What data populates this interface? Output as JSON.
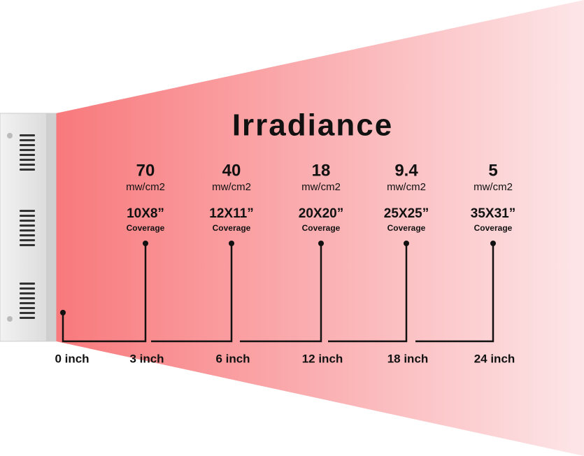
{
  "title": "Irradiance",
  "origin_label": "0 inch",
  "columns": [
    {
      "value": "70",
      "unit": "mw/cm2",
      "coverage": "10X8”",
      "coverage_label": "Coverage",
      "distance": "3 inch"
    },
    {
      "value": "40",
      "unit": "mw/cm2",
      "coverage": "12X11”",
      "coverage_label": "Coverage",
      "distance": "6 inch"
    },
    {
      "value": "18",
      "unit": "mw/cm2",
      "coverage": "20X20”",
      "coverage_label": "Coverage",
      "distance": "12 inch"
    },
    {
      "value": "9.4",
      "unit": "mw/cm2",
      "coverage": "25X25”",
      "coverage_label": "Coverage",
      "distance": "18 inch"
    },
    {
      "value": "5",
      "unit": "mw/cm2",
      "coverage": "35X31”",
      "coverage_label": "Coverage",
      "distance": "24 inch"
    }
  ]
}
